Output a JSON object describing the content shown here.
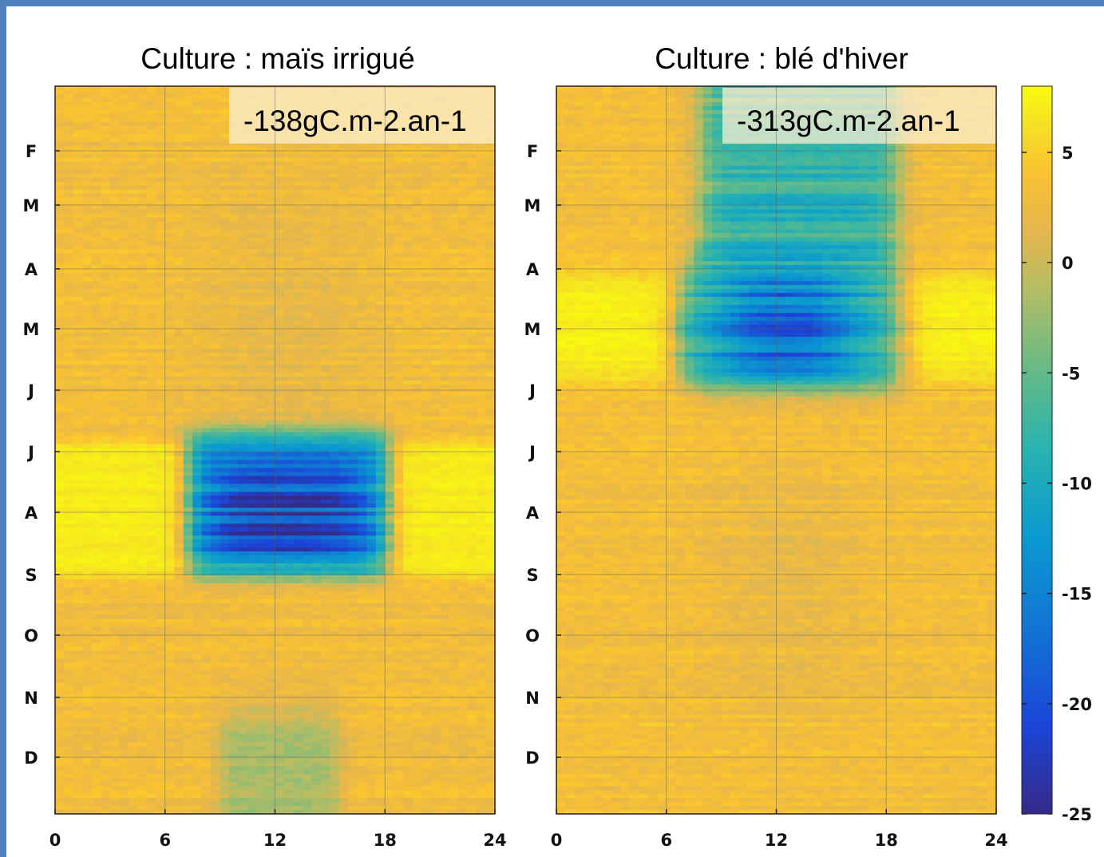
{
  "chart_data": [
    {
      "type": "heatmap",
      "title": "Culture : maïs irrigué",
      "annotation": "-138gC.m-2.an-1",
      "xlabel": "",
      "ylabel": "",
      "xlim": [
        0,
        24
      ],
      "x_ticks": [
        0,
        6,
        12,
        18,
        24
      ],
      "y_ticks": [
        "F",
        "M",
        "A",
        "M",
        "J",
        "J",
        "A",
        "S",
        "O",
        "N",
        "D"
      ],
      "grid": true,
      "description_values": {
        "background": 1.5,
        "uptake_block": {
          "start_hour": 7,
          "end_hour": 18.5,
          "months": [
            "J",
            "A",
            "S"
          ],
          "min_value": -25
        },
        "warm_band": {
          "months": [
            "J",
            "A",
            "S"
          ],
          "value": 6
        }
      }
    },
    {
      "type": "heatmap",
      "title": "Culture : blé d'hiver",
      "annotation": "-313gC.m-2.an-1",
      "xlabel": "",
      "ylabel": "",
      "xlim": [
        0,
        24
      ],
      "x_ticks": [
        0,
        6,
        12,
        18,
        24
      ],
      "y_ticks": [
        "F",
        "M",
        "A",
        "M",
        "J",
        "J",
        "A",
        "S",
        "O",
        "N",
        "D"
      ],
      "grid": true,
      "description_values": {
        "background": 1.5,
        "uptake_block": {
          "start_hour": 7,
          "end_hour": 19.5,
          "months": [
            "F",
            "M",
            "A",
            "M",
            "J"
          ],
          "min_value": -25
        },
        "warm_band": {
          "months": [
            "A",
            "M"
          ],
          "value": 6
        }
      }
    }
  ],
  "colorbar": {
    "ticks": [
      5,
      0,
      -5,
      -10,
      -15,
      -20,
      -25
    ],
    "range": [
      -25,
      8
    ]
  }
}
